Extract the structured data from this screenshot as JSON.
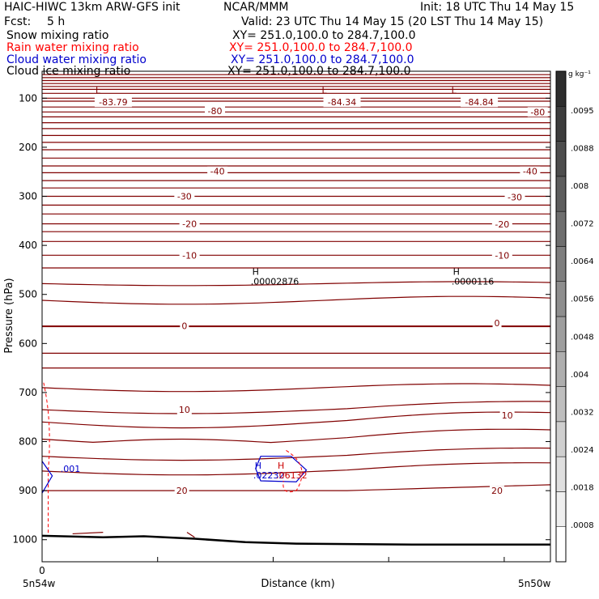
{
  "header": {
    "title_left": "HAIC-HIWC 13km ARW-GFS init",
    "title_mid": "NCAR/MMM",
    "init": "Init: 18 UTC Thu 14 May 15",
    "fcst_label": "Fcst:",
    "fcst_value": "5 h",
    "valid": "Valid: 23 UTC Thu 14 May 15 (20 LST Thu 14 May 15)"
  },
  "fields": [
    {
      "name": "Snow mixing ratio",
      "xy": "XY= 251.0,100.0 to 284.7,100.0",
      "color": "#000000"
    },
    {
      "name": "Rain water mixing ratio",
      "xy": "XY= 251.0,100.0 to 284.7,100.0",
      "color": "#ff0000"
    },
    {
      "name": "Cloud water mixing ratio",
      "xy": "XY= 251.0,100.0 to 284.7,100.0",
      "color": "#0000cc"
    },
    {
      "name": "Cloud ice mixing ratio",
      "xy": "XY= 251.0,100.0 to 284.7,100.0",
      "color": "#000000"
    }
  ],
  "chart_data": {
    "type": "contour",
    "ylabel": "Pressure (hPa)",
    "xlabel": "Distance (km)",
    "y_ticks": [
      100,
      200,
      300,
      400,
      500,
      600,
      700,
      800,
      900,
      1000
    ],
    "ylim": [
      1045,
      45
    ],
    "x_ticks": [
      "0"
    ],
    "x_end_labels": [
      "5n54w",
      "5n50w"
    ],
    "contour_color": "#800000",
    "colorbar": {
      "unit": "g kg⁻¹",
      "ticks": [
        ".0095",
        ".0088",
        ".008",
        ".0072",
        ".0064",
        ".0056",
        ".0048",
        ".004",
        ".0032",
        ".0024",
        ".0018",
        ".0008"
      ]
    },
    "contour_labels": [
      {
        "text": "-83.79",
        "x": 0.14,
        "p": 108
      },
      {
        "text": "-84.34",
        "x": 0.59,
        "p": 108
      },
      {
        "text": "-84.84",
        "x": 0.86,
        "p": 108
      },
      {
        "text": "-80",
        "x": 0.34,
        "p": 126
      },
      {
        "text": "-80",
        "x": 0.975,
        "p": 128
      },
      {
        "text": "-40",
        "x": 0.345,
        "p": 249
      },
      {
        "text": "-40",
        "x": 0.96,
        "p": 249
      },
      {
        "text": "-30",
        "x": 0.28,
        "p": 300
      },
      {
        "text": "-30",
        "x": 0.93,
        "p": 302
      },
      {
        "text": "-20",
        "x": 0.29,
        "p": 356
      },
      {
        "text": "-20",
        "x": 0.905,
        "p": 357
      },
      {
        "text": "-10",
        "x": 0.29,
        "p": 420
      },
      {
        "text": "-10",
        "x": 0.905,
        "p": 420
      },
      {
        "text": "0",
        "x": 0.28,
        "p": 564
      },
      {
        "text": "0",
        "x": 0.895,
        "p": 558
      },
      {
        "text": "10",
        "x": 0.28,
        "p": 735
      },
      {
        "text": "10",
        "x": 0.915,
        "p": 746
      },
      {
        "text": "20",
        "x": 0.275,
        "p": 900
      },
      {
        "text": "20",
        "x": 0.895,
        "p": 900
      }
    ],
    "extrema": [
      {
        "kind": "L",
        "x": 0.11,
        "p": 90,
        "color": "#800000"
      },
      {
        "kind": "L",
        "x": 0.555,
        "p": 90,
        "color": "#800000"
      },
      {
        "kind": "L",
        "x": 0.81,
        "p": 90,
        "color": "#800000"
      },
      {
        "kind": "H",
        "x": 0.42,
        "p": 460,
        "value": ".00002876",
        "color": "#000000"
      },
      {
        "kind": "H",
        "x": 0.815,
        "p": 460,
        "value": ".0000116",
        "color": "#000000"
      },
      {
        "kind": "H",
        "x": 0.425,
        "p": 855,
        "value": ".02232",
        "color": "#0000cc"
      },
      {
        "kind": "H",
        "x": 0.47,
        "p": 855,
        "value": ".06132",
        "color": "#cc0000"
      },
      {
        "kind": "",
        "x": 0.033,
        "p": 855,
        "value": ".001",
        "color": "#0000cc"
      }
    ]
  }
}
